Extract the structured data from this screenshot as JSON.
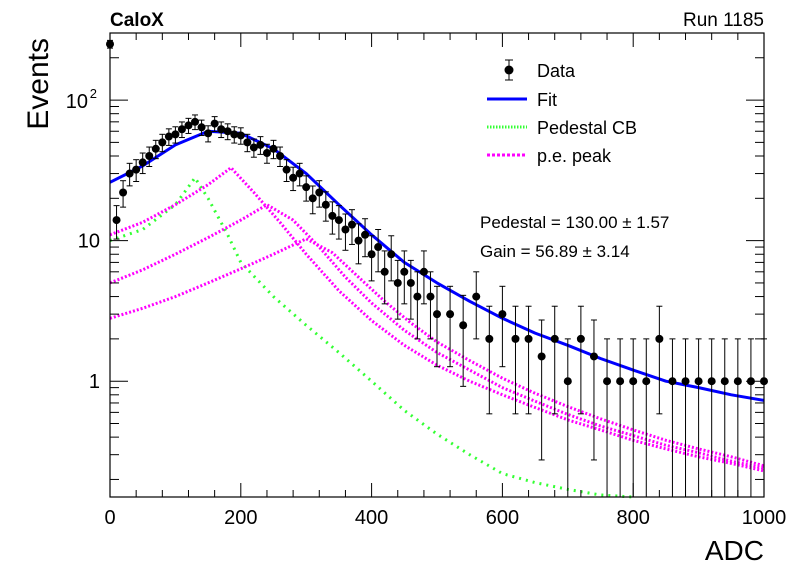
{
  "header": {
    "left_label": "CaloX",
    "right_label": "Run 1185"
  },
  "annotation": {
    "pedestal": "Pedestal = 130.00 ± 1.57",
    "gain": "Gain = 56.89 ± 3.14"
  },
  "chart_data": {
    "type": "scatter",
    "title": "",
    "xlabel": "ADC",
    "ylabel": "Events",
    "xlim": [
      0,
      1000
    ],
    "ylim": [
      0.15,
      300
    ],
    "yscale": "log",
    "x_ticks": [
      0,
      200,
      400,
      600,
      800,
      1000
    ],
    "y_ticks": [
      {
        "value": 1,
        "label": "1"
      },
      {
        "value": 10,
        "label": "10"
      },
      {
        "value": 100,
        "label": "10",
        "exponent": "2"
      }
    ],
    "grid": false,
    "legend": {
      "placement": "top-right",
      "entries": [
        {
          "label": "Data",
          "style": "marker"
        },
        {
          "label": "Fit",
          "style": "line",
          "color": "#0000ff"
        },
        {
          "label": "Pedestal CB",
          "style": "dotted",
          "color": "#33ff33"
        },
        {
          "label": "p.e. peak",
          "style": "dotted",
          "color": "#ff00ff"
        }
      ]
    },
    "series": [
      {
        "name": "Data",
        "color": "#000000",
        "x": [
          0,
          10,
          20,
          30,
          40,
          50,
          60,
          70,
          80,
          90,
          100,
          110,
          120,
          130,
          140,
          150,
          160,
          170,
          180,
          190,
          200,
          210,
          220,
          230,
          240,
          250,
          260,
          270,
          280,
          290,
          300,
          310,
          320,
          330,
          340,
          350,
          360,
          370,
          380,
          390,
          400,
          410,
          420,
          430,
          440,
          450,
          460,
          470,
          480,
          490,
          500,
          520,
          540,
          560,
          580,
          600,
          620,
          640,
          660,
          680,
          700,
          720,
          740,
          760,
          780,
          800,
          820,
          840,
          860,
          880,
          900,
          920,
          940,
          960,
          980,
          1000
        ],
        "y": [
          250,
          14,
          22,
          30,
          32,
          36,
          40,
          45,
          50,
          55,
          57,
          62,
          66,
          70,
          64,
          58,
          68,
          62,
          60,
          57,
          56,
          50,
          46,
          48,
          42,
          45,
          40,
          32,
          28,
          30,
          24,
          20,
          22,
          18,
          15,
          14,
          12,
          13,
          10,
          11,
          8,
          9,
          6,
          8,
          5,
          6,
          5,
          4,
          6,
          4,
          3,
          3,
          2.5,
          4,
          2,
          3,
          2,
          2,
          1.5,
          2,
          1,
          2,
          1.5,
          1,
          1,
          1,
          1,
          2,
          1,
          1,
          1,
          1,
          1,
          1,
          1,
          1
        ]
      },
      {
        "name": "Fit",
        "color": "#0000ff",
        "x": [
          0,
          50,
          100,
          150,
          200,
          250,
          300,
          350,
          400,
          450,
          500,
          550,
          600,
          650,
          700,
          750,
          800,
          850,
          900,
          950,
          1000
        ],
        "y": [
          26,
          34,
          48,
          60,
          58,
          45,
          30,
          18,
          11,
          7,
          5,
          3.7,
          2.8,
          2.2,
          1.8,
          1.45,
          1.2,
          1.0,
          0.9,
          0.8,
          0.73
        ]
      },
      {
        "name": "Pedestal CB",
        "color": "#33ff33",
        "x": [
          0,
          50,
          100,
          130,
          150,
          180,
          200,
          250,
          300,
          350,
          400,
          450,
          500,
          550,
          600,
          650,
          700,
          750,
          800
        ],
        "y": [
          10,
          12,
          18,
          28,
          20,
          11,
          7,
          4,
          2.5,
          1.6,
          1.0,
          0.62,
          0.42,
          0.3,
          0.22,
          0.19,
          0.17,
          0.155,
          0.14
        ]
      },
      {
        "name": "p.e. peak 1",
        "color": "#ff00ff",
        "x": [
          0,
          50,
          100,
          150,
          185,
          220,
          260,
          300,
          350,
          400,
          450,
          500,
          550,
          600,
          650,
          700,
          750,
          800,
          850,
          900,
          950,
          1000
        ],
        "y": [
          11,
          13.5,
          18,
          25,
          33,
          22,
          13.5,
          8,
          4.4,
          2.7,
          1.8,
          1.3,
          1.0,
          0.8,
          0.65,
          0.53,
          0.45,
          0.38,
          0.33,
          0.29,
          0.26,
          0.23
        ]
      },
      {
        "name": "p.e. peak 2",
        "color": "#ff00ff",
        "x": [
          0,
          50,
          100,
          150,
          200,
          240,
          280,
          320,
          360,
          400,
          450,
          500,
          550,
          600,
          650,
          700,
          750,
          800,
          850,
          900,
          950,
          1000
        ],
        "y": [
          5,
          6.2,
          8,
          10.5,
          14,
          18,
          14,
          9,
          5.5,
          3.6,
          2.3,
          1.6,
          1.2,
          0.9,
          0.72,
          0.58,
          0.48,
          0.41,
          0.35,
          0.31,
          0.27,
          0.24
        ]
      },
      {
        "name": "p.e. peak 3",
        "color": "#ff00ff",
        "x": [
          0,
          50,
          100,
          150,
          200,
          250,
          300,
          340,
          380,
          420,
          460,
          500,
          550,
          600,
          650,
          700,
          750,
          800,
          850,
          900,
          950,
          1000
        ],
        "y": [
          2.8,
          3.3,
          4.0,
          5.0,
          6.3,
          8.0,
          10.3,
          8.2,
          5.5,
          3.7,
          2.6,
          1.9,
          1.4,
          1.05,
          0.82,
          0.66,
          0.54,
          0.45,
          0.38,
          0.33,
          0.29,
          0.25
        ]
      }
    ]
  }
}
